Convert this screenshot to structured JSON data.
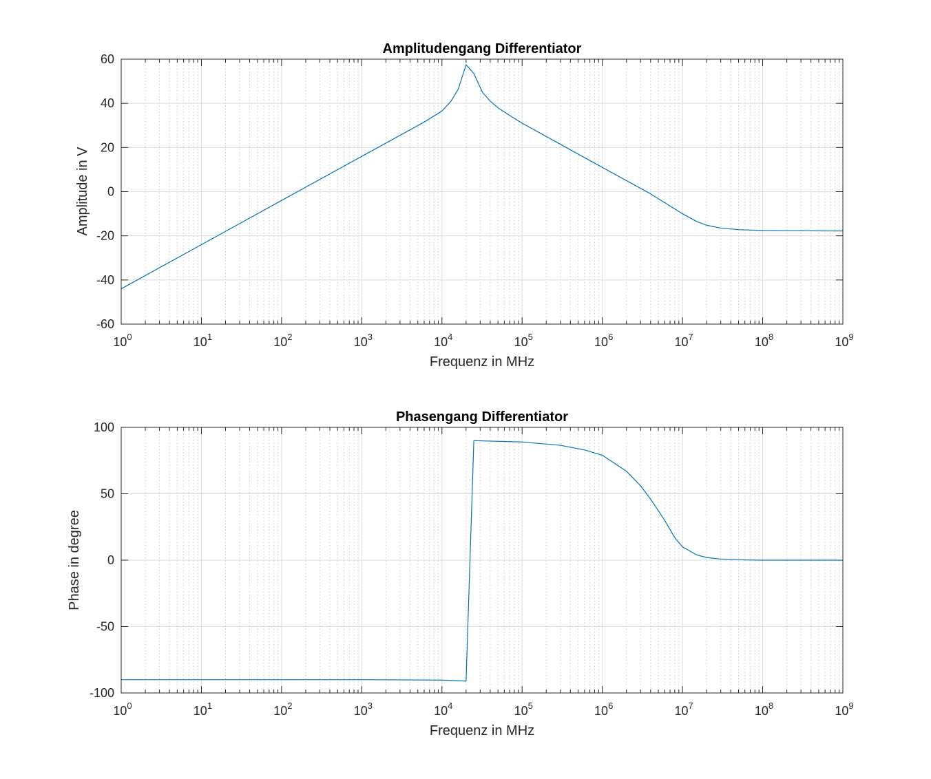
{
  "chart_data": [
    {
      "type": "line",
      "title": "Amplitudengang Differentiator",
      "xlabel": "Frequenz in MHz",
      "ylabel": "Amplitude in V",
      "xscale": "log",
      "xlim": [
        1,
        1000000000
      ],
      "ylim": [
        -60,
        60
      ],
      "x_ticks": [
        {
          "base": "10",
          "exp": "0"
        },
        {
          "base": "10",
          "exp": "1"
        },
        {
          "base": "10",
          "exp": "2"
        },
        {
          "base": "10",
          "exp": "3"
        },
        {
          "base": "10",
          "exp": "4"
        },
        {
          "base": "10",
          "exp": "5"
        },
        {
          "base": "10",
          "exp": "6"
        },
        {
          "base": "10",
          "exp": "7"
        },
        {
          "base": "10",
          "exp": "8"
        },
        {
          "base": "10",
          "exp": "9"
        }
      ],
      "y_ticks": [
        "-60",
        "-40",
        "-20",
        "0",
        "20",
        "40",
        "60"
      ],
      "grid": true,
      "minor_grid": true,
      "color": "#0072BD",
      "series": [
        {
          "x": [
            1,
            10,
            100,
            1000,
            3000,
            6000,
            10000,
            13000,
            16000,
            20000,
            25000,
            32000,
            40000,
            50000,
            70000,
            100000,
            200000,
            500000,
            1000000,
            2000000,
            4000000,
            7000000,
            10000000,
            15000000,
            20000000,
            30000000,
            50000000,
            100000000,
            200000000,
            1000000000
          ],
          "y": [
            -44,
            -24,
            -4,
            16,
            25.5,
            31.5,
            36.5,
            41,
            46.5,
            57.5,
            53.5,
            45,
            41,
            38,
            34.5,
            31,
            25,
            17,
            11,
            5,
            -1,
            -6.5,
            -10,
            -13.5,
            -15.2,
            -16.5,
            -17.2,
            -17.6,
            -17.7,
            -17.8
          ]
        }
      ]
    },
    {
      "type": "line",
      "title": "Phasengang Differentiator",
      "xlabel": "Frequenz in MHz",
      "ylabel": "Phase in degree",
      "xscale": "log",
      "xlim": [
        1,
        1000000000
      ],
      "ylim": [
        -100,
        100
      ],
      "x_ticks": [
        {
          "base": "10",
          "exp": "0"
        },
        {
          "base": "10",
          "exp": "1"
        },
        {
          "base": "10",
          "exp": "2"
        },
        {
          "base": "10",
          "exp": "3"
        },
        {
          "base": "10",
          "exp": "4"
        },
        {
          "base": "10",
          "exp": "5"
        },
        {
          "base": "10",
          "exp": "6"
        },
        {
          "base": "10",
          "exp": "7"
        },
        {
          "base": "10",
          "exp": "8"
        },
        {
          "base": "10",
          "exp": "9"
        }
      ],
      "y_ticks": [
        "-100",
        "-50",
        "0",
        "50",
        "100"
      ],
      "grid": true,
      "minor_grid": true,
      "color": "#0072BD",
      "series": [
        {
          "x": [
            1,
            1000,
            10000,
            16000,
            20000,
            25000,
            100000,
            300000,
            600000,
            1000000,
            2000000,
            3000000,
            4000000,
            6000000,
            8000000,
            10000000,
            15000000,
            20000000,
            30000000,
            50000000,
            100000000,
            1000000000
          ],
          "y": [
            -90,
            -90,
            -90.3,
            -90.8,
            -91,
            90,
            89,
            86.5,
            83,
            79,
            67,
            56,
            46,
            30,
            17,
            10,
            4,
            2,
            0.8,
            0.3,
            0,
            0
          ]
        }
      ]
    }
  ]
}
